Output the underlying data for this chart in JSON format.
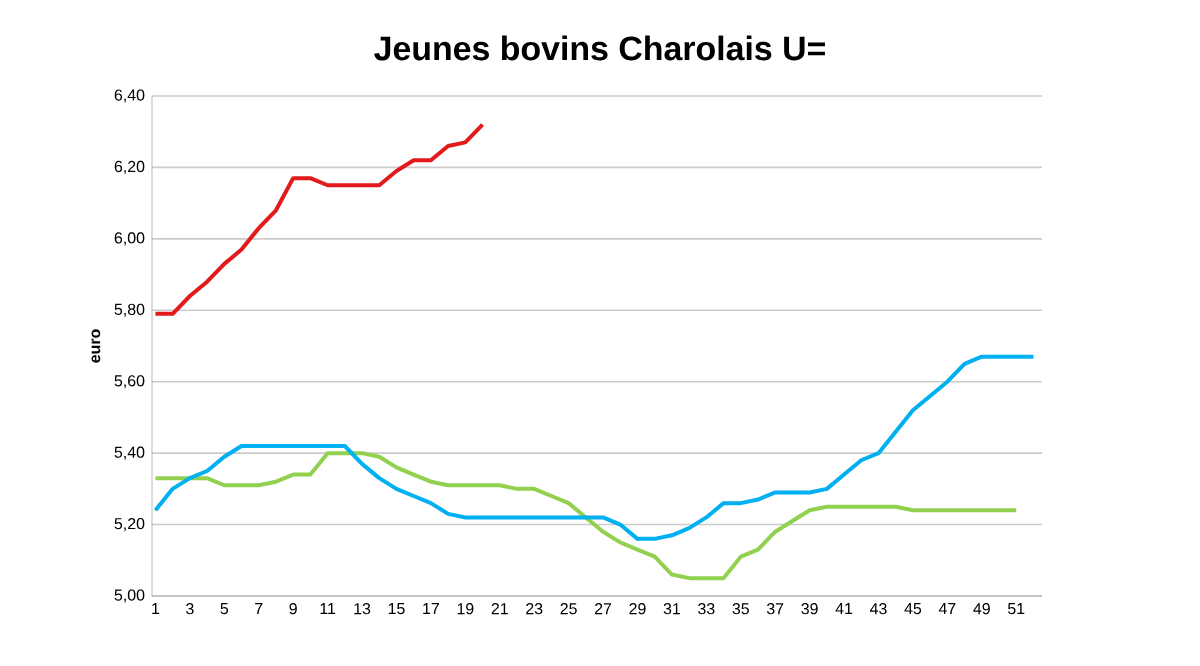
{
  "chart_data": {
    "type": "line",
    "title": "Jeunes bovins Charolais U=",
    "ylabel": "euro",
    "categories": [
      "1",
      null,
      "3",
      null,
      "5",
      null,
      "7",
      null,
      "9",
      null,
      "11",
      null,
      "13",
      null,
      "15",
      null,
      "17",
      null,
      "19",
      null,
      "21",
      null,
      "23",
      null,
      "25",
      null,
      "27",
      null,
      "29",
      null,
      "31",
      null,
      "33",
      null,
      "35",
      null,
      "37",
      null,
      "39",
      null,
      "41",
      null,
      "43",
      null,
      "45",
      null,
      "47",
      null,
      "49",
      null,
      "51",
      null
    ],
    "ylim": [
      5.0,
      6.4
    ],
    "yticks": [
      {
        "value": 5.0,
        "label": "5,00"
      },
      {
        "value": 5.2,
        "label": "5,20"
      },
      {
        "value": 5.4,
        "label": "5,40"
      },
      {
        "value": 5.6,
        "label": "5,60"
      },
      {
        "value": 5.8,
        "label": "5,80"
      },
      {
        "value": 6.0,
        "label": "6,00"
      },
      {
        "value": 6.2,
        "label": "6,20"
      },
      {
        "value": 6.4,
        "label": "6,40"
      }
    ],
    "grid": "y",
    "series": [
      {
        "color": "#92d050",
        "values": [
          5.33,
          5.33,
          5.33,
          5.33,
          5.31,
          5.31,
          5.31,
          5.32,
          5.34,
          5.34,
          5.4,
          5.4,
          5.4,
          5.39,
          5.36,
          5.34,
          5.32,
          5.31,
          5.31,
          5.31,
          5.31,
          5.3,
          5.3,
          5.28,
          5.26,
          5.22,
          5.18,
          5.15,
          5.13,
          5.11,
          5.06,
          5.05,
          5.05,
          5.05,
          5.11,
          5.13,
          5.18,
          5.21,
          5.24,
          5.25,
          5.25,
          5.25,
          5.25,
          5.25,
          5.24,
          5.24,
          5.24,
          5.24,
          5.24,
          5.24,
          5.24,
          null
        ]
      },
      {
        "color": "#00b0f0",
        "values": [
          5.24,
          5.3,
          5.33,
          5.35,
          5.39,
          5.42,
          5.42,
          5.42,
          5.42,
          5.42,
          5.42,
          5.42,
          5.37,
          5.33,
          5.3,
          5.28,
          5.26,
          5.23,
          5.22,
          5.22,
          5.22,
          5.22,
          5.22,
          5.22,
          5.22,
          5.22,
          5.22,
          5.2,
          5.16,
          5.16,
          5.17,
          5.19,
          5.22,
          5.26,
          5.26,
          5.27,
          5.29,
          5.29,
          5.29,
          5.3,
          5.34,
          5.38,
          5.4,
          5.46,
          5.52,
          5.56,
          5.6,
          5.65,
          5.67,
          5.67,
          5.67,
          5.67
        ]
      },
      {
        "color": "#e31a1c",
        "values": [
          5.79,
          5.79,
          5.84,
          5.88,
          5.93,
          5.97,
          6.03,
          6.08,
          6.17,
          6.17,
          6.15,
          6.15,
          6.15,
          6.15,
          6.19,
          6.22,
          6.22,
          6.26,
          6.27,
          6.32,
          null,
          null,
          null,
          null,
          null,
          null,
          null,
          null,
          null,
          null,
          null,
          null,
          null,
          null,
          null,
          null,
          null,
          null,
          null,
          null,
          null,
          null,
          null,
          null,
          null,
          null,
          null,
          null,
          null,
          null,
          null,
          null
        ]
      }
    ]
  }
}
